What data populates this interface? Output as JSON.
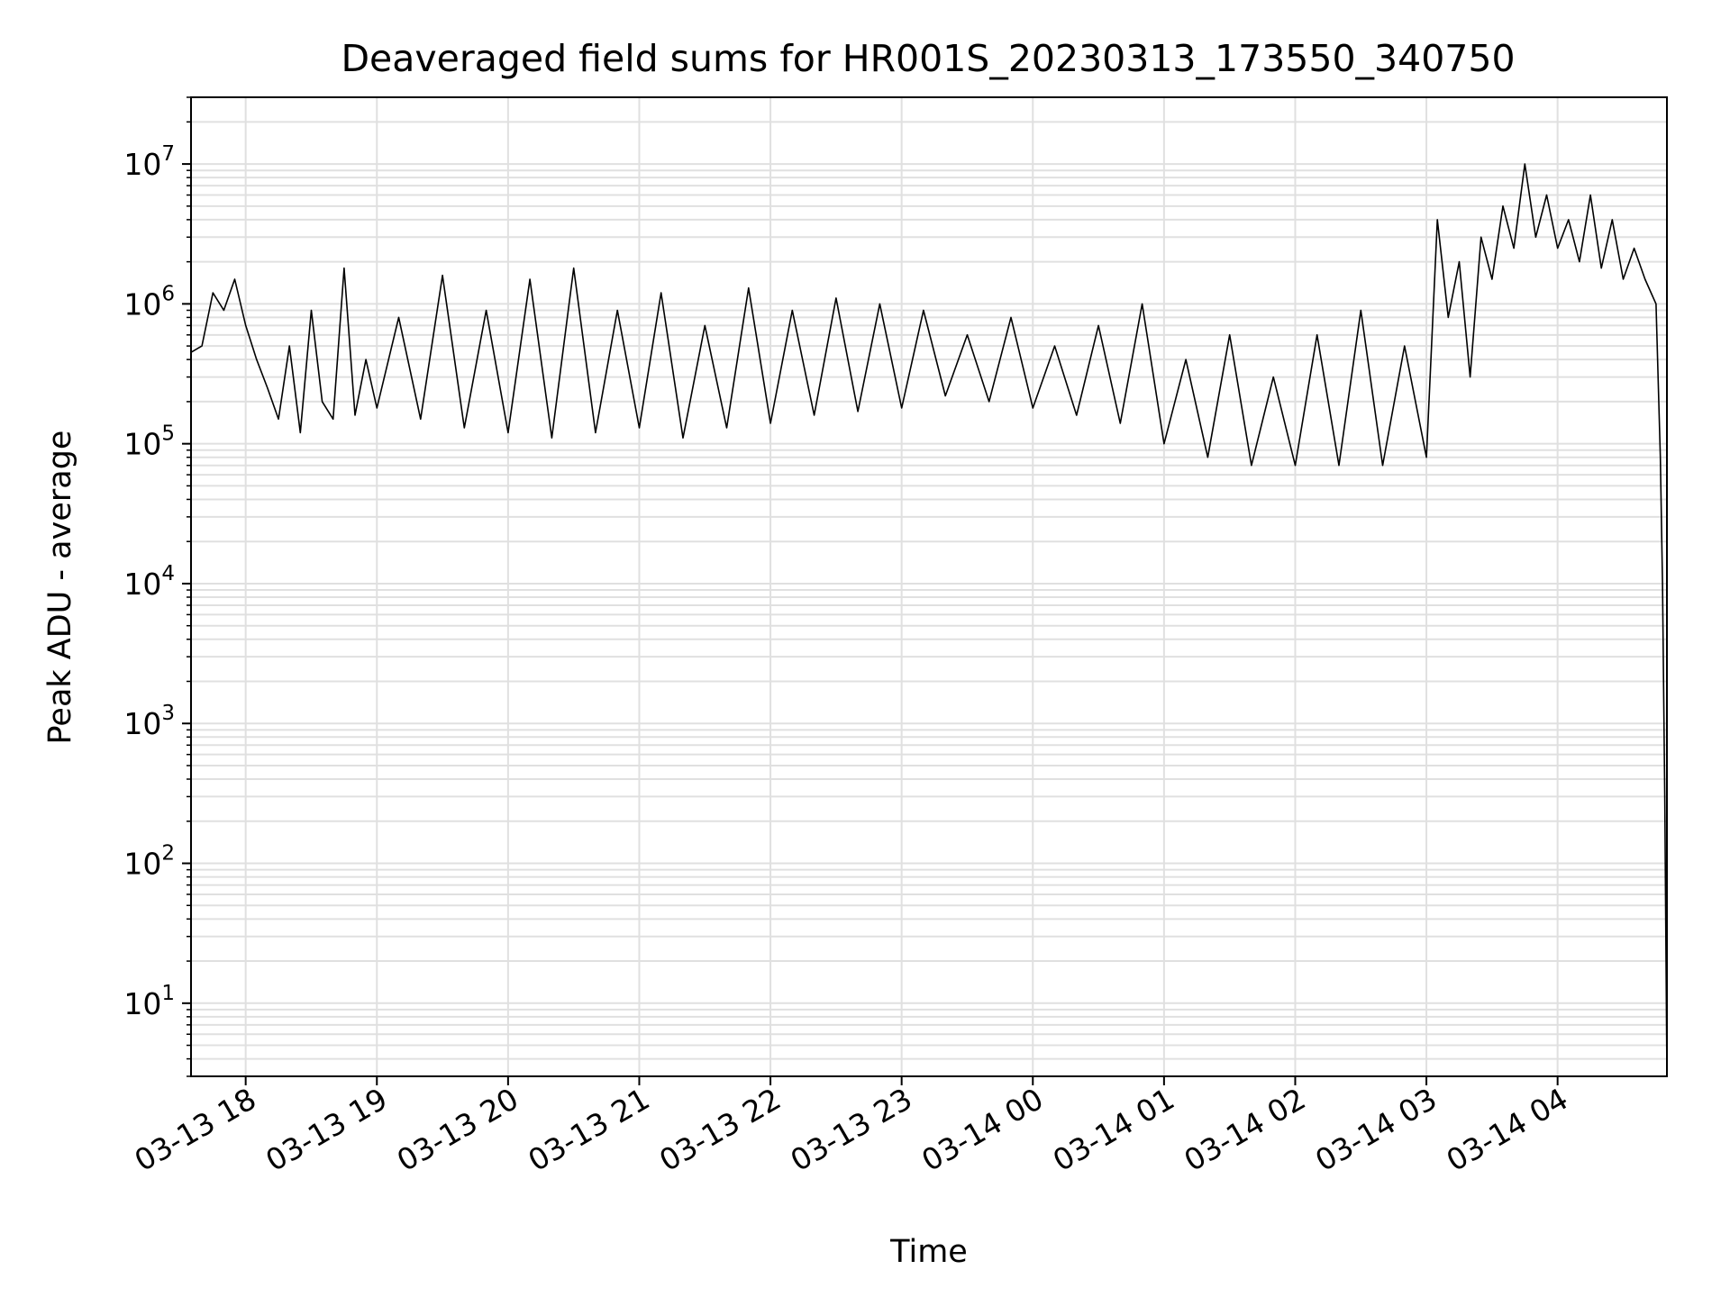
{
  "chart_data": {
    "type": "line",
    "title": "Deaveraged field sums for HR001S_20230313_173550_340750",
    "xlabel": "Time",
    "ylabel": "Peak ADU - average",
    "y_scale": "log",
    "ylim": [
      3,
      30000000
    ],
    "xlim": [
      "2023-03-13 17:35",
      "2023-03-14 04:50"
    ],
    "grid": "on (major and minor)",
    "line_color": "#000000",
    "grid_color": "#e0e0e0",
    "x_ticks": [
      {
        "value": "2023-03-13 18:00",
        "label": "03-13 18"
      },
      {
        "value": "2023-03-13 19:00",
        "label": "03-13 19"
      },
      {
        "value": "2023-03-13 20:00",
        "label": "03-13 20"
      },
      {
        "value": "2023-03-13 21:00",
        "label": "03-13 21"
      },
      {
        "value": "2023-03-13 22:00",
        "label": "03-13 22"
      },
      {
        "value": "2023-03-13 23:00",
        "label": "03-13 23"
      },
      {
        "value": "2023-03-14 00:00",
        "label": "03-14 00"
      },
      {
        "value": "2023-03-14 01:00",
        "label": "03-14 01"
      },
      {
        "value": "2023-03-14 02:00",
        "label": "03-14 02"
      },
      {
        "value": "2023-03-14 03:00",
        "label": "03-14 03"
      },
      {
        "value": "2023-03-14 04:00",
        "label": "03-14 04"
      }
    ],
    "y_ticks": [
      {
        "value": 10,
        "base": "10",
        "exp": "1"
      },
      {
        "value": 100,
        "base": "10",
        "exp": "2"
      },
      {
        "value": 1000,
        "base": "10",
        "exp": "3"
      },
      {
        "value": 10000,
        "base": "10",
        "exp": "4"
      },
      {
        "value": 100000,
        "base": "10",
        "exp": "5"
      },
      {
        "value": 1000000,
        "base": "10",
        "exp": "6"
      },
      {
        "value": 10000000,
        "base": "10",
        "exp": "7"
      }
    ],
    "series": [
      {
        "x": [
          "2023-03-13 17:35",
          "2023-03-13 17:40",
          "2023-03-13 17:45",
          "2023-03-13 17:50",
          "2023-03-13 17:55",
          "2023-03-13 18:00",
          "2023-03-13 18:05",
          "2023-03-13 18:10",
          "2023-03-13 18:15",
          "2023-03-13 18:20",
          "2023-03-13 18:25",
          "2023-03-13 18:30",
          "2023-03-13 18:35",
          "2023-03-13 18:40",
          "2023-03-13 18:45",
          "2023-03-13 18:50",
          "2023-03-13 18:55",
          "2023-03-13 19:00",
          "2023-03-13 19:10",
          "2023-03-13 19:20",
          "2023-03-13 19:30",
          "2023-03-13 19:40",
          "2023-03-13 19:50",
          "2023-03-13 20:00",
          "2023-03-13 20:10",
          "2023-03-13 20:20",
          "2023-03-13 20:30",
          "2023-03-13 20:40",
          "2023-03-13 20:50",
          "2023-03-13 21:00",
          "2023-03-13 21:10",
          "2023-03-13 21:20",
          "2023-03-13 21:30",
          "2023-03-13 21:40",
          "2023-03-13 21:50",
          "2023-03-13 22:00",
          "2023-03-13 22:10",
          "2023-03-13 22:20",
          "2023-03-13 22:30",
          "2023-03-13 22:40",
          "2023-03-13 22:50",
          "2023-03-13 23:00",
          "2023-03-13 23:10",
          "2023-03-13 23:20",
          "2023-03-13 23:30",
          "2023-03-13 23:40",
          "2023-03-13 23:50",
          "2023-03-14 00:00",
          "2023-03-14 00:10",
          "2023-03-14 00:20",
          "2023-03-14 00:30",
          "2023-03-14 00:40",
          "2023-03-14 00:50",
          "2023-03-14 01:00",
          "2023-03-14 01:10",
          "2023-03-14 01:20",
          "2023-03-14 01:30",
          "2023-03-14 01:40",
          "2023-03-14 01:50",
          "2023-03-14 02:00",
          "2023-03-14 02:10",
          "2023-03-14 02:20",
          "2023-03-14 02:30",
          "2023-03-14 02:40",
          "2023-03-14 02:50",
          "2023-03-14 03:00",
          "2023-03-14 03:05",
          "2023-03-14 03:10",
          "2023-03-14 03:15",
          "2023-03-14 03:20",
          "2023-03-14 03:25",
          "2023-03-14 03:30",
          "2023-03-14 03:35",
          "2023-03-14 03:40",
          "2023-03-14 03:45",
          "2023-03-14 03:50",
          "2023-03-14 03:55",
          "2023-03-14 04:00",
          "2023-03-14 04:05",
          "2023-03-14 04:10",
          "2023-03-14 04:15",
          "2023-03-14 04:20",
          "2023-03-14 04:25",
          "2023-03-14 04:30",
          "2023-03-14 04:35",
          "2023-03-14 04:40",
          "2023-03-14 04:45",
          "2023-03-14 04:47",
          "2023-03-14 04:48",
          "2023-03-14 04:49",
          "2023-03-14 04:50"
        ],
        "y": [
          450000,
          500000,
          1200000,
          900000,
          1500000,
          700000,
          400000,
          250000,
          150000,
          500000,
          120000,
          900000,
          200000,
          150000,
          1800000,
          160000,
          400000,
          180000,
          800000,
          150000,
          1600000,
          130000,
          900000,
          120000,
          1500000,
          110000,
          1800000,
          120000,
          900000,
          130000,
          1200000,
          110000,
          700000,
          130000,
          1300000,
          140000,
          900000,
          160000,
          1100000,
          170000,
          1000000,
          180000,
          900000,
          220000,
          600000,
          200000,
          800000,
          180000,
          500000,
          160000,
          700000,
          140000,
          1000000,
          100000,
          400000,
          80000,
          600000,
          70000,
          300000,
          70000,
          600000,
          70000,
          900000,
          70000,
          500000,
          80000,
          4000000,
          800000,
          2000000,
          300000,
          3000000,
          1500000,
          5000000,
          2500000,
          10000000,
          3000000,
          6000000,
          2500000,
          4000000,
          2000000,
          6000000,
          1800000,
          4000000,
          1500000,
          2500000,
          1500000,
          1000000,
          80000,
          10000,
          300,
          3
        ]
      }
    ]
  }
}
